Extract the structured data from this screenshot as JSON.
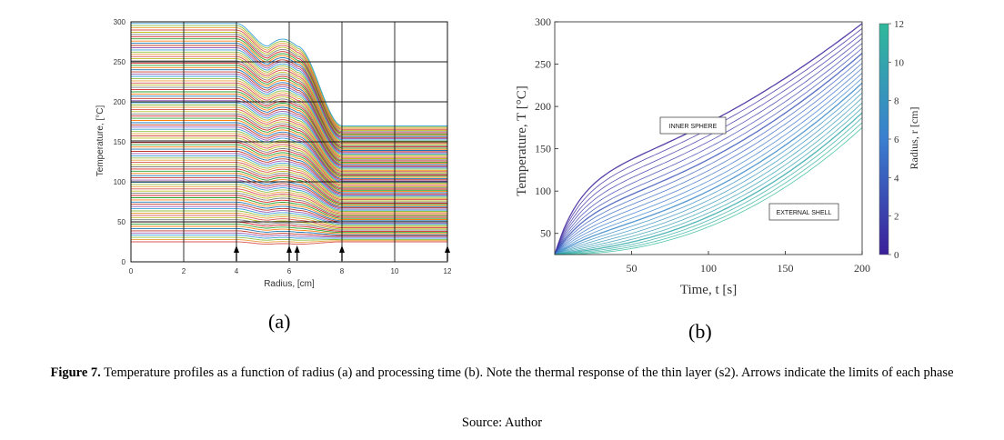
{
  "figure": {
    "label_a": "(a)",
    "label_b": "(b)",
    "caption_lead": "Figure 7.",
    "caption_text": "Temperature profiles as a function of radius (a) and processing time (b). Note the thermal response of the thin layer (s2). Arrows indicate the limits of each phase",
    "source": "Source: Author"
  },
  "chart_data": [
    {
      "type": "line",
      "xlabel": "Radius, [cm]",
      "ylabel": "Temperature, [°C]",
      "xlim": [
        0,
        12
      ],
      "ylim": [
        0,
        300
      ],
      "xticks": [
        0,
        2,
        4,
        6,
        8,
        10,
        12
      ],
      "yticks": [
        0,
        50,
        100,
        150,
        200,
        250,
        300
      ],
      "grid": true,
      "phase_limit_arrows": [
        4,
        6,
        6.3,
        8,
        12
      ],
      "profile_count": 100,
      "profile_end_temperature_range": [
        25,
        170
      ],
      "profile_start_temperature_range": [
        25,
        298
      ],
      "initial_temperature": 25
    },
    {
      "type": "line",
      "xlabel": "Time, t [s]",
      "ylabel": "Temperature, T [°C]",
      "xlim": [
        0,
        200
      ],
      "ylim": [
        25,
        300
      ],
      "xticks": [
        50,
        100,
        150,
        200
      ],
      "yticks": [
        50,
        100,
        150,
        200,
        250,
        300
      ],
      "grid": false,
      "annotations": [
        "INNER SPHERE",
        "EXTERNAL SHELL"
      ],
      "colorbar": {
        "label": "Radius, r [cm]",
        "range": [
          0,
          12
        ],
        "ticks": [
          0,
          2,
          4,
          6,
          8,
          10,
          12
        ],
        "low_color": "#3b1f9a",
        "high_color": "#2fb89a"
      },
      "series_start_temperature": 25,
      "series_end_temperature_range": [
        175,
        298
      ],
      "series_count": 22
    }
  ]
}
